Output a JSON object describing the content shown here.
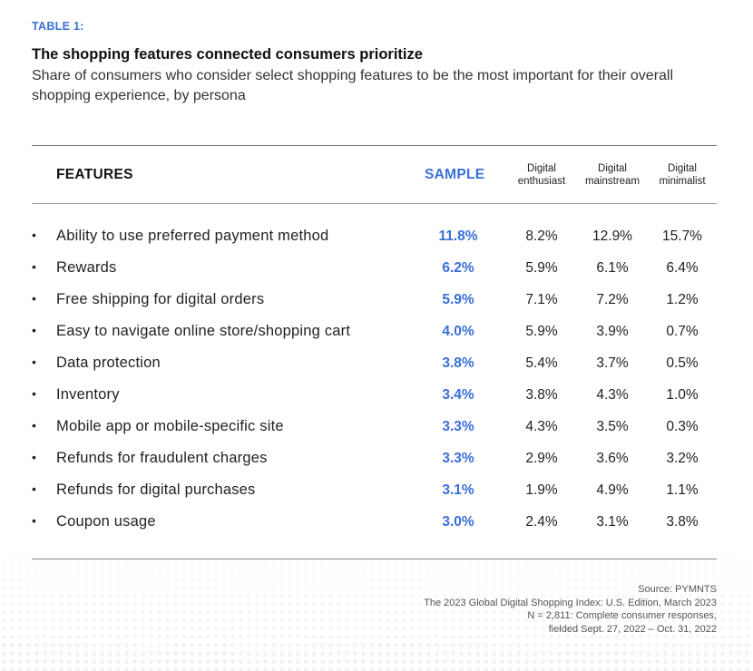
{
  "table_label": "TABLE 1:",
  "title": "The shopping features connected consumers prioritize",
  "subtitle": "Share of consumers who consider select shopping features to be the most important for their overall shopping experience, by persona",
  "headers": {
    "features": "FEATURES",
    "sample": "SAMPLE",
    "persona1": [
      "Digital",
      "enthusiast"
    ],
    "persona2": [
      "Digital",
      "mainstream"
    ],
    "persona3": [
      "Digital",
      "minimalist"
    ]
  },
  "rows": [
    {
      "feature": "Ability to use preferred payment method",
      "sample": "11.8%",
      "p1": "8.2%",
      "p2": "12.9%",
      "p3": "15.7%"
    },
    {
      "feature": "Rewards",
      "sample": "6.2%",
      "p1": "5.9%",
      "p2": "6.1%",
      "p3": "6.4%"
    },
    {
      "feature": "Free shipping for digital orders",
      "sample": "5.9%",
      "p1": "7.1%",
      "p2": "7.2%",
      "p3": "1.2%"
    },
    {
      "feature": "Easy to navigate online store/shopping cart",
      "sample": "4.0%",
      "p1": "5.9%",
      "p2": "3.9%",
      "p3": "0.7%"
    },
    {
      "feature": "Data protection",
      "sample": "3.8%",
      "p1": "5.4%",
      "p2": "3.7%",
      "p3": "0.5%"
    },
    {
      "feature": "Inventory",
      "sample": "3.4%",
      "p1": "3.8%",
      "p2": "4.3%",
      "p3": "1.0%"
    },
    {
      "feature": "Mobile app or mobile-specific site",
      "sample": "3.3%",
      "p1": "4.3%",
      "p2": "3.5%",
      "p3": "0.3%"
    },
    {
      "feature": "Refunds for fraudulent charges",
      "sample": "3.3%",
      "p1": "2.9%",
      "p2": "3.6%",
      "p3": "3.2%"
    },
    {
      "feature": "Refunds for digital purchases",
      "sample": "3.1%",
      "p1": "1.9%",
      "p2": "4.9%",
      "p3": "1.1%"
    },
    {
      "feature": "Coupon usage",
      "sample": "3.0%",
      "p1": "2.4%",
      "p2": "3.1%",
      "p3": "3.8%"
    }
  ],
  "bullet": "•",
  "source": [
    "Source: PYMNTS",
    "The 2023 Global Digital Shopping Index: U.S. Edition, March 2023",
    "N = 2,811: Complete consumer responses,",
    "fielded Sept. 27, 2022 – Oct. 31, 2022"
  ],
  "colors": {
    "accent": "#3a6fd8",
    "text": "#222222",
    "rule": "#777777"
  }
}
